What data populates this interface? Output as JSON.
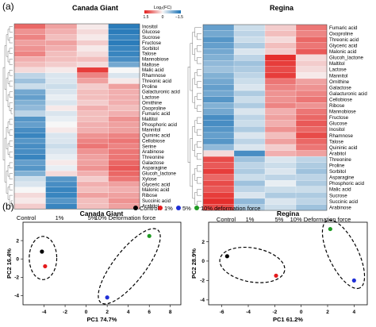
{
  "panel_labels": [
    "(a)",
    "(b)"
  ],
  "colors": {
    "high": "#e4201e",
    "low": "#1c73b6",
    "mid": "#f7f7f7",
    "control": "#000000",
    "one_pct": "#e41a1c",
    "five_pct": "#1f2fd6",
    "ten_pct": "#1f9a23"
  },
  "chart_data": [
    {
      "type": "heatmap",
      "title": "Canada Giant",
      "legend_title": "Log₂(FC)",
      "color_scale": {
        "min": -1.5,
        "max": 1.5,
        "tick_labels": [
          "1.5",
          "0",
          "−1.5"
        ],
        "reversed_colors": true
      },
      "dendrogram": "left",
      "columns": [
        "Control",
        "1%",
        "5%",
        "10% Deformation force"
      ],
      "rows": [
        "Inositol",
        "Glucose",
        "Sucrose",
        "Fructose",
        "Sorbitol",
        "Talose",
        "Mannobiose",
        "Maltose",
        "Malic acid",
        "Rhamnose",
        "Threonic acid",
        "Proline",
        "Galacturonic acid",
        "Lactose",
        "Ornithine",
        "Oxoproline",
        "Fumaric acid",
        "Maltitol",
        "Phosphoric acid",
        "Mannitol",
        "Quininic acid",
        "Cellobiose",
        "Serine",
        "Arabinose",
        "Threonine",
        "Galactose",
        "Asparagine",
        "Glucoh_lactone",
        "Xylose",
        "Glyceric acid",
        "Malonic acid",
        "Ribose",
        "Succinic acid",
        "Arabitol"
      ],
      "values": [
        [
          1.0,
          0.6,
          0.1,
          -1.4
        ],
        [
          0.7,
          0.5,
          0.2,
          -1.4
        ],
        [
          0.8,
          0.4,
          0.1,
          -1.3
        ],
        [
          0.6,
          0.6,
          0.3,
          -1.4
        ],
        [
          0.7,
          0.5,
          0.1,
          -1.3
        ],
        [
          0.8,
          0.4,
          0.2,
          -1.3
        ],
        [
          0.5,
          0.4,
          0.4,
          -1.2
        ],
        [
          0.4,
          0.3,
          0.2,
          -0.9
        ],
        [
          0.2,
          0.1,
          1.3,
          0.0
        ],
        [
          -0.4,
          -0.2,
          0.8,
          -0.2
        ],
        [
          -0.6,
          -0.2,
          0.6,
          0.1
        ],
        [
          -0.3,
          -0.3,
          0.3,
          0.6
        ],
        [
          -0.9,
          -0.2,
          0.4,
          0.5
        ],
        [
          -1.0,
          -0.1,
          0.4,
          0.5
        ],
        [
          -0.8,
          -0.2,
          0.3,
          0.5
        ],
        [
          -0.7,
          0.1,
          0.5,
          0.4
        ],
        [
          -0.4,
          -0.2,
          0.4,
          0.5
        ],
        [
          -1.1,
          -0.1,
          0.4,
          0.7
        ],
        [
          -1.0,
          0.0,
          0.5,
          0.6
        ],
        [
          -1.2,
          0.1,
          0.5,
          0.6
        ],
        [
          -1.3,
          -0.2,
          0.7,
          0.8
        ],
        [
          -1.1,
          -0.2,
          0.8,
          0.9
        ],
        [
          -1.2,
          -0.3,
          0.9,
          0.8
        ],
        [
          -1.2,
          -0.2,
          0.7,
          0.9
        ],
        [
          -1.3,
          -0.1,
          0.6,
          0.9
        ],
        [
          -1.0,
          0.1,
          0.6,
          1.0
        ],
        [
          -1.1,
          -0.1,
          0.7,
          1.1
        ],
        [
          -0.8,
          0.2,
          0.5,
          1.0
        ],
        [
          -0.3,
          -1.1,
          0.3,
          0.9
        ],
        [
          -0.2,
          -1.2,
          0.5,
          0.6
        ],
        [
          0.0,
          -1.3,
          0.4,
          0.5
        ],
        [
          0.2,
          -1.3,
          0.6,
          0.6
        ],
        [
          0.1,
          -1.1,
          0.4,
          0.7
        ],
        [
          0.3,
          -1.3,
          0.4,
          0.6
        ]
      ]
    },
    {
      "type": "heatmap",
      "title": "Regina",
      "dendrogram": "left",
      "columns": [
        "Control",
        "1%",
        "5%",
        "10% Deformation force"
      ],
      "rows": [
        "Fumaric acid",
        "Oxoproline",
        "Threonic acid",
        "Glyceric acid",
        "Malonic acid",
        "Glucoh_lactone",
        "Maltitol",
        "Lactose",
        "Mannitol",
        "Ornithine",
        "Galactose",
        "Galacturonic acid",
        "Cellobiose",
        "Ribose",
        "Mannobiose",
        "Fructose",
        "Glucose",
        "Inositol",
        "Rhamnose",
        "Talose",
        "Quininic acid",
        "Arabitol",
        "Threonine",
        "Proline",
        "Sorbitol",
        "Asparagine",
        "Phosphoric acid",
        "Malic acid",
        "Sucrose",
        "Succinic acid",
        "Arabinose"
      ],
      "values": [
        [
          -1.0,
          -0.3,
          0.3,
          0.9
        ],
        [
          -0.9,
          -0.4,
          0.4,
          0.8
        ],
        [
          -1.1,
          -0.3,
          0.2,
          1.0
        ],
        [
          -1.0,
          -0.5,
          0.4,
          0.9
        ],
        [
          -0.9,
          -0.2,
          0.3,
          1.1
        ],
        [
          -0.8,
          -0.4,
          1.4,
          0.2
        ],
        [
          -0.7,
          -0.6,
          1.3,
          0.3
        ],
        [
          -0.6,
          -0.5,
          1.2,
          0.2
        ],
        [
          -0.8,
          -0.4,
          1.3,
          0.1
        ],
        [
          -0.9,
          -0.3,
          0.9,
          0.6
        ],
        [
          -1.0,
          -0.2,
          0.8,
          0.7
        ],
        [
          -0.9,
          -0.5,
          0.7,
          0.8
        ],
        [
          -1.1,
          -0.3,
          0.7,
          0.9
        ],
        [
          -0.8,
          -0.5,
          0.8,
          0.7
        ],
        [
          -0.9,
          -0.2,
          0.5,
          0.9
        ],
        [
          -1.2,
          -0.4,
          0.6,
          1.0
        ],
        [
          -1.2,
          -0.3,
          0.5,
          1.1
        ],
        [
          -1.1,
          -0.5,
          0.7,
          1.0
        ],
        [
          -1.0,
          -0.2,
          0.4,
          1.2
        ],
        [
          -1.1,
          -0.4,
          0.6,
          1.0
        ],
        [
          -0.7,
          -0.2,
          0.3,
          0.9
        ],
        [
          0.2,
          -1.2,
          0.5,
          0.6
        ],
        [
          1.2,
          -0.6,
          -0.2,
          -0.4
        ],
        [
          1.1,
          -0.4,
          -0.3,
          -0.5
        ],
        [
          1.3,
          -0.5,
          -0.2,
          -0.6
        ],
        [
          1.0,
          -0.3,
          -0.4,
          -0.4
        ],
        [
          1.2,
          -0.6,
          -0.1,
          -0.5
        ],
        [
          1.1,
          -0.4,
          -0.3,
          -0.3
        ],
        [
          1.3,
          -0.2,
          -0.5,
          -0.5
        ],
        [
          1.4,
          -0.7,
          -0.2,
          -0.4
        ],
        [
          1.2,
          -0.5,
          -0.3,
          -0.6
        ]
      ]
    },
    {
      "type": "scatter",
      "title": "Canada Giant",
      "xlabel": "PC1 74.7%",
      "ylabel": "PC2 16.4%",
      "xlim": [
        -6,
        9
      ],
      "ylim": [
        -5,
        4
      ],
      "xticks": [
        -4,
        -2,
        0,
        2,
        4,
        6,
        8
      ],
      "yticks": [
        -4,
        -2,
        0,
        2
      ],
      "legend": [
        "Control",
        "1%",
        "5%",
        "10% deformation force"
      ],
      "series": [
        {
          "name": "Control",
          "x": [
            -4.2
          ],
          "y": [
            0.8
          ]
        },
        {
          "name": "1%",
          "x": [
            -3.9
          ],
          "y": [
            -0.8
          ]
        },
        {
          "name": "5%",
          "x": [
            2.0
          ],
          "y": [
            -4.2
          ]
        },
        {
          "name": "10% deformation force",
          "x": [
            6.0
          ],
          "y": [
            2.5
          ]
        }
      ],
      "clusters": [
        {
          "cx": -4.1,
          "cy": 0.1,
          "rx": 1.4,
          "ry": 2.2,
          "angle": 0
        },
        {
          "cx": 4.1,
          "cy": -0.8,
          "rx": 4.7,
          "ry": 1.6,
          "angle": 52
        }
      ]
    },
    {
      "type": "scatter",
      "title": "Regina",
      "xlabel": "PC1 61.2%",
      "ylabel": "PC2 28.9%",
      "xlim": [
        -7,
        5
      ],
      "ylim": [
        -4.5,
        4
      ],
      "xticks": [
        -6,
        -4,
        -2,
        0,
        2,
        4
      ],
      "yticks": [
        -4,
        -2,
        0,
        2
      ],
      "series": [
        {
          "name": "Control",
          "x": [
            -5.6
          ],
          "y": [
            0.5
          ]
        },
        {
          "name": "1%",
          "x": [
            -1.9
          ],
          "y": [
            -1.5
          ]
        },
        {
          "name": "5%",
          "x": [
            4.0
          ],
          "y": [
            -2.0
          ]
        },
        {
          "name": "10% deformation force",
          "x": [
            2.2
          ],
          "y": [
            3.3
          ]
        }
      ],
      "clusters": [
        {
          "cx": -3.7,
          "cy": -0.4,
          "rx": 2.9,
          "ry": 1.5,
          "angle": -10
        },
        {
          "cx": 3.2,
          "cy": 0.7,
          "rx": 3.3,
          "ry": 1.3,
          "angle": -64
        }
      ]
    }
  ]
}
